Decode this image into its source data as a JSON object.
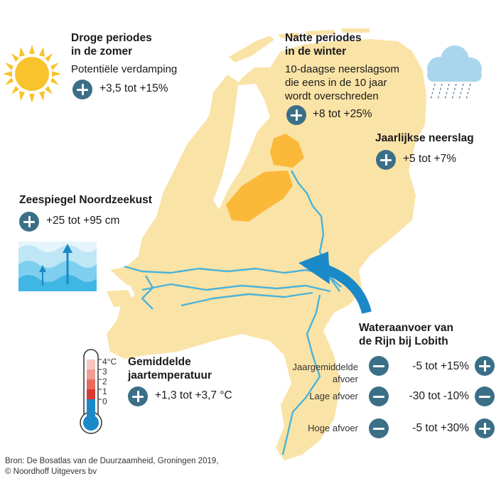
{
  "colors": {
    "land": "#fae3a6",
    "polder": "#fbb93a",
    "river": "#4ab3d9",
    "arrow": "#1b89c7",
    "button": "#3b6f87",
    "sun": "#f9c32d",
    "cloud": "#a9d6ec",
    "rain": "#6f8f9f"
  },
  "droog": {
    "title_1": "Droge periodes",
    "title_2": "in de zomer",
    "subtitle": "Potentiële verdamping",
    "sign": "plus",
    "value": "+3,5 tot +15%"
  },
  "nat": {
    "title_1": "Natte periodes",
    "title_2": "in de winter",
    "desc_1": "10-daagse neerslagsom",
    "desc_2": "die eens in de 10 jaar",
    "desc_3": "wordt overschreden",
    "sign": "plus",
    "value": "+8 tot +25%"
  },
  "neerslag": {
    "title": "Jaarlijkse neerslag",
    "sign": "plus",
    "value": "+5 tot +7%"
  },
  "zeespiegel": {
    "title": "Zeespiegel Noordzeekust",
    "sign": "plus",
    "value": "+25 tot +95 cm"
  },
  "temperatuur": {
    "title_1": "Gemiddelde",
    "title_2": "jaartemperatuur",
    "sign": "plus",
    "value": "+1,3 tot +3,7 °C",
    "scale": [
      "4°C",
      "3",
      "2",
      "1",
      "0"
    ]
  },
  "wateraanvoer": {
    "title_1": "Wateraanvoer van",
    "title_2": "de Rijn bij Lobith",
    "rows": [
      {
        "label_1": "Jaargemiddelde",
        "label_2": "afvoer",
        "left_sign": "minus",
        "value": "-5 tot +15%",
        "right_sign": "plus"
      },
      {
        "label_1": "Lage afvoer",
        "label_2": "",
        "left_sign": "minus",
        "value": "-30 tot -10%",
        "right_sign": "minus"
      },
      {
        "label_1": "Hoge afvoer",
        "label_2": "",
        "left_sign": "minus",
        "value": "-5 tot +30%",
        "right_sign": "plus"
      }
    ]
  },
  "bron": {
    "line_1": "Bron: De Bosatlas van de Duurzaamheid, Groningen 2019,",
    "line_2": "© Noordhoff Uitgevers bv"
  },
  "icons": [
    "sun-icon",
    "rain-cloud-icon",
    "sea-level-icon",
    "thermometer-icon",
    "flow-arrow-icon"
  ]
}
